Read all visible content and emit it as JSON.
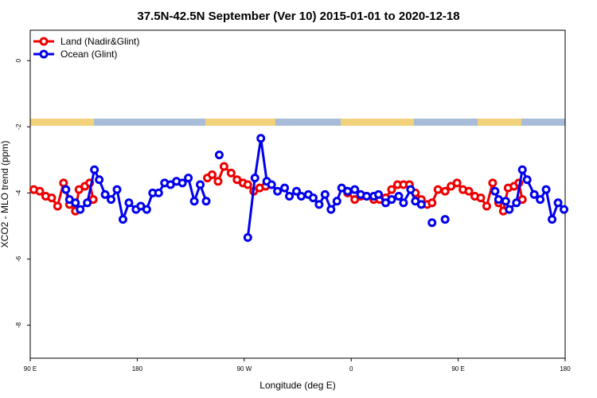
{
  "chart_data": {
    "type": "line",
    "title": "37.5N-42.5N September (Ver 10)   2015-01-01 to 2020-12-18",
    "x_label": "Longitude (deg E)",
    "y_label": "XCO2 - MLO trend (ppm)",
    "xlim": [
      90,
      540
    ],
    "xticks": [
      {
        "value": 90,
        "label": "90 E"
      },
      180,
      {
        "value": 270,
        "label": "90 W"
      },
      {
        "value": 360,
        "label": "0"
      },
      {
        "value": 450,
        "label": "90 E"
      },
      {
        "value": 540,
        "label": "180"
      }
    ],
    "ylim": [
      -9.0,
      0.92
    ],
    "yticks": [
      0,
      -2,
      -4,
      -6,
      -8
    ],
    "legend": "top-left",
    "series": [
      {
        "name": "Land (Nadir&Glint)",
        "color": "#ee0000",
        "x": [
          93,
          98,
          103,
          108,
          113,
          118,
          123,
          128,
          131,
          136,
          140,
          143,
          null,
          239,
          243,
          248,
          253,
          259,
          264,
          269,
          273,
          278,
          283,
          288,
          null,
          357,
          363,
          368,
          373,
          379,
          384,
          389,
          394,
          399,
          404,
          409,
          414,
          419,
          424,
          428,
          433,
          439,
          444,
          449,
          454,
          459,
          464,
          469,
          474,
          479,
          484,
          488,
          492,
          497,
          501,
          504
        ],
        "values": [
          -3.9,
          -3.95,
          -4.1,
          -4.15,
          -4.4,
          -3.7,
          -4.35,
          -4.55,
          -3.9,
          -3.8,
          -3.7,
          -4.2,
          null,
          -3.55,
          -3.45,
          -3.65,
          -3.2,
          -3.4,
          -3.6,
          -3.7,
          -3.75,
          -3.95,
          -3.85,
          -3.8,
          null,
          -4.0,
          -4.2,
          -4.1,
          -4.1,
          -4.2,
          -4.2,
          -4.15,
          -3.9,
          -3.75,
          -3.75,
          -3.75,
          -4.0,
          -4.2,
          -4.35,
          -4.3,
          -3.9,
          -3.95,
          -3.8,
          -3.7,
          -3.9,
          -3.95,
          -4.1,
          -4.15,
          -4.4,
          -3.7,
          -4.3,
          -4.55,
          -3.85,
          -3.8,
          -3.7,
          -4.2
        ]
      },
      {
        "name": "Ocean (Glint)",
        "color": "#0000ee",
        "x": [
          120,
          123,
          128,
          132,
          138,
          144,
          148,
          153,
          158,
          163,
          168,
          173,
          179,
          183,
          188,
          193,
          198,
          203,
          208,
          213,
          218,
          223,
          228,
          233,
          238,
          null,
          249,
          null,
          273,
          279,
          284,
          289,
          293,
          298,
          304,
          308,
          314,
          318,
          324,
          328,
          333,
          338,
          343,
          348,
          352,
          357,
          363,
          368,
          373,
          379,
          383,
          389,
          394,
          400,
          404,
          410,
          414,
          419,
          null,
          428,
          null,
          439,
          null,
          481,
          484,
          490,
          493,
          499,
          504,
          508,
          514,
          519,
          524,
          529,
          534,
          539
        ],
        "values": [
          -3.9,
          -4.2,
          -4.3,
          -4.5,
          -4.3,
          -3.3,
          -3.6,
          -4.05,
          -4.2,
          -3.9,
          -4.8,
          -4.3,
          -4.5,
          -4.4,
          -4.5,
          -4.0,
          -4.0,
          -3.7,
          -3.75,
          -3.65,
          -3.7,
          -3.55,
          -4.25,
          -3.75,
          -4.25,
          null,
          -2.85,
          null,
          -5.35,
          -3.55,
          -2.35,
          -3.65,
          -3.75,
          -3.95,
          -3.85,
          -4.1,
          -3.95,
          -4.1,
          -4.05,
          -4.15,
          -4.35,
          -4.05,
          -4.5,
          -4.25,
          -3.85,
          -3.95,
          -3.9,
          -4.05,
          -4.1,
          -4.1,
          -4.05,
          -4.3,
          -4.2,
          -4.1,
          -4.3,
          -3.9,
          -4.25,
          -4.35,
          null,
          -4.9,
          null,
          -4.8,
          null,
          -3.95,
          -4.2,
          -4.25,
          -4.5,
          -4.3,
          -3.3,
          -3.6,
          -4.05,
          -4.2,
          -3.9,
          -4.8,
          -4.3,
          -4.5
        ]
      }
    ]
  }
}
